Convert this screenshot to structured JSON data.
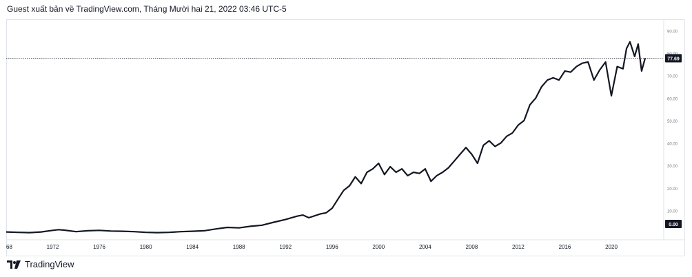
{
  "header": {
    "text": "Guest xuất bản về TradingView.com, Tháng Mười hai 21, 2022 03:46 UTC-5"
  },
  "footer": {
    "logo_text": "TradingView"
  },
  "chart_data": {
    "type": "line",
    "title": "",
    "xlabel": "",
    "ylabel": "",
    "x_ticks": [
      "68",
      "1972",
      "1976",
      "1980",
      "1984",
      "1988",
      "1992",
      "1996",
      "2000",
      "2004",
      "2008",
      "2012",
      "2016",
      "2020"
    ],
    "y_ticks": [
      "90.00",
      "80.00",
      "70.00",
      "60.00",
      "50.00",
      "40.00",
      "30.00",
      "20.00",
      "10.00"
    ],
    "ylim": [
      -3,
      95
    ],
    "xlim": [
      1968.0,
      2024.5
    ],
    "last_value_label": "77.69",
    "zero_label": "0.00",
    "last_value": 77.69,
    "grid": false,
    "line_color": "#131722",
    "series": [
      {
        "x": [
          1968.0,
          1969.0,
          1970.0,
          1971.0,
          1972.0,
          1972.5,
          1973.0,
          1974.0,
          1975.0,
          1976.0,
          1977.0,
          1978.0,
          1979.0,
          1980.0,
          1981.0,
          1982.0,
          1983.0,
          1984.0,
          1985.0,
          1986.0,
          1987.0,
          1988.0,
          1989.0,
          1990.0,
          1991.0,
          1992.0,
          1993.0,
          1993.5,
          1994.0,
          1995.0,
          1995.5,
          1996.0,
          1996.5,
          1997.0,
          1997.5,
          1998.0,
          1998.5,
          1999.0,
          1999.5,
          2000.0,
          2000.5,
          2001.0,
          2001.5,
          2002.0,
          2002.5,
          2003.0,
          2003.5,
          2004.0,
          2004.5,
          2005.0,
          2005.5,
          2006.0,
          2006.5,
          2007.0,
          2007.5,
          2008.0,
          2008.5,
          2009.0,
          2009.5,
          2010.0,
          2010.5,
          2011.0,
          2011.5,
          2012.0,
          2012.5,
          2013.0,
          2013.5,
          2014.0,
          2014.5,
          2015.0,
          2015.5,
          2016.0,
          2016.5,
          2017.0,
          2017.5,
          2018.0,
          2018.5,
          2019.0,
          2019.5,
          2020.0,
          2020.5,
          2021.0,
          2021.3,
          2021.6,
          2022.0,
          2022.3,
          2022.6,
          2022.9
        ],
        "y": [
          0.5,
          0.3,
          0.2,
          0.5,
          1.2,
          1.5,
          1.3,
          0.6,
          1.0,
          1.2,
          0.9,
          0.8,
          0.6,
          0.3,
          0.2,
          0.3,
          0.6,
          0.8,
          1.0,
          1.8,
          2.5,
          2.3,
          3.0,
          3.5,
          4.8,
          6.0,
          7.5,
          8.0,
          6.8,
          8.5,
          9.0,
          11.0,
          15.0,
          19.0,
          21.0,
          25.0,
          22.0,
          27.0,
          28.5,
          31.0,
          26.0,
          29.5,
          27.0,
          28.5,
          25.5,
          27.0,
          26.5,
          28.5,
          23.0,
          25.5,
          27.0,
          29.0,
          32.0,
          35.0,
          38.0,
          35.0,
          31.0,
          39.0,
          41.0,
          38.5,
          40.0,
          43.0,
          44.5,
          48.0,
          50.0,
          57.0,
          60.0,
          65.0,
          68.0,
          69.0,
          68.0,
          72.0,
          71.5,
          74.0,
          75.5,
          76.0,
          68.0,
          72.5,
          76.0,
          61.0,
          74.0,
          73.0,
          82.0,
          85.0,
          78.5,
          84.0,
          72.0,
          77.69
        ]
      }
    ]
  }
}
